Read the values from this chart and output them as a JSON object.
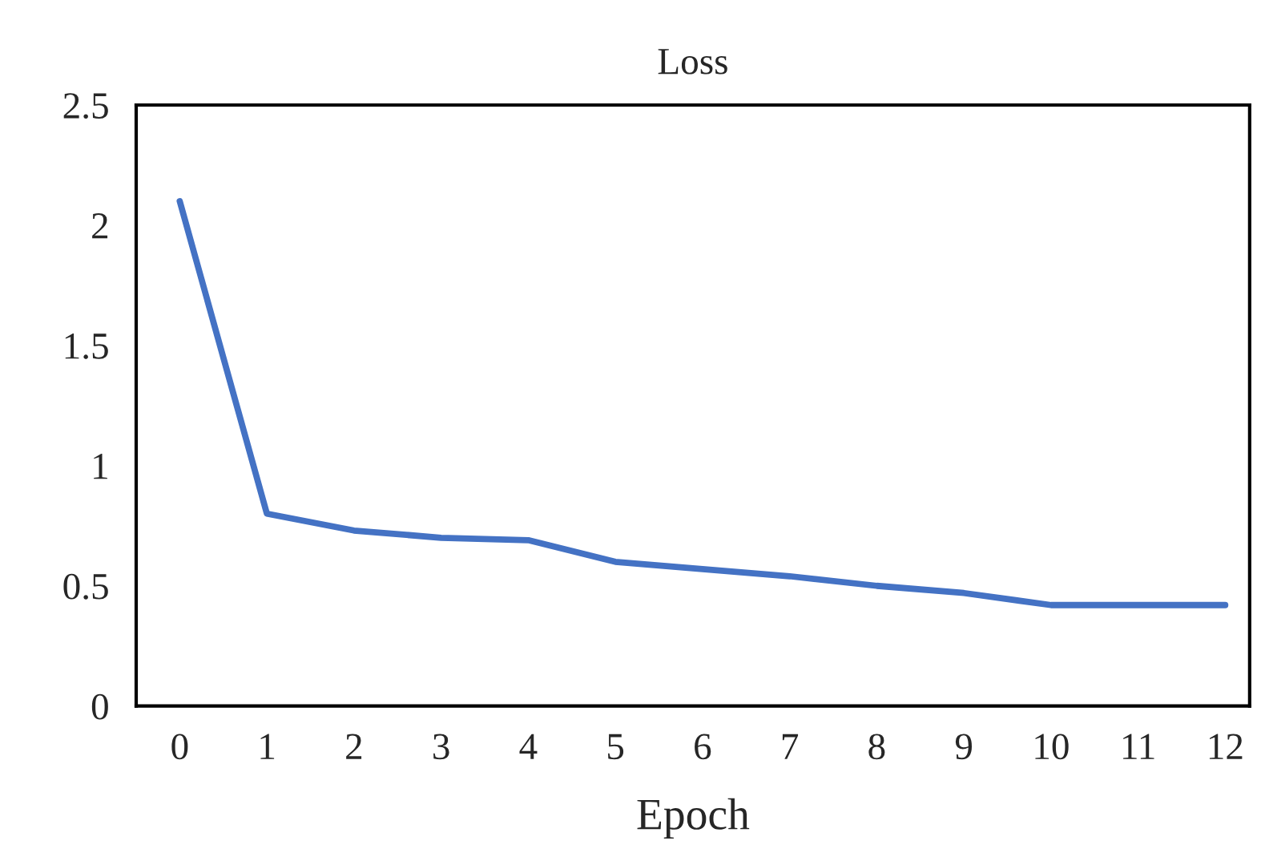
{
  "chart_data": {
    "type": "line",
    "title": "Loss",
    "xlabel": "Epoch",
    "categories": [
      "0",
      "1",
      "2",
      "3",
      "4",
      "5",
      "6",
      "7",
      "8",
      "9",
      "10",
      "11",
      "12"
    ],
    "series": [
      {
        "color": "#4472c4",
        "values": [
          2.1,
          0.8,
          0.73,
          0.7,
          0.69,
          0.6,
          0.57,
          0.54,
          0.5,
          0.47,
          0.42,
          0.42,
          0.42
        ]
      }
    ],
    "ylim": [
      0,
      2.5
    ],
    "yticks": [
      0,
      0.5,
      1,
      1.5,
      2,
      2.5
    ],
    "grid": false,
    "legend": false,
    "marker": "none",
    "line_style": "solid"
  }
}
